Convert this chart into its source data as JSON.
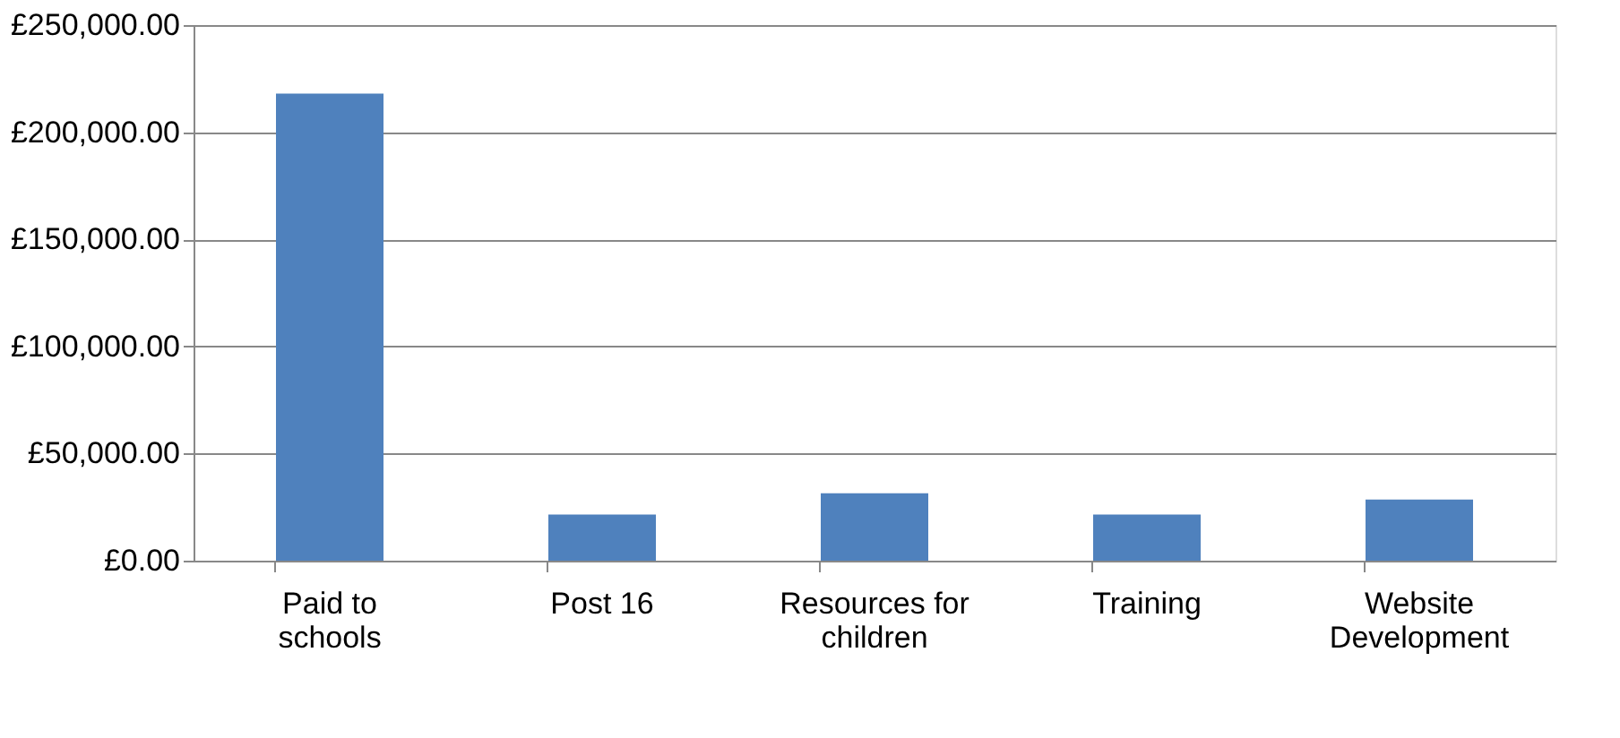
{
  "chart_data": {
    "type": "bar",
    "categories": [
      "Paid to schools",
      "Post 16",
      "Resources for children",
      "Training",
      "Website Development"
    ],
    "values": [
      218000,
      21500,
      31500,
      21500,
      28500
    ],
    "color": "#4f81bd",
    "ylim": [
      0,
      250000
    ],
    "yticks": [
      {
        "value": 0,
        "label": "£0.00"
      },
      {
        "value": 50000,
        "label": "£50,000.00"
      },
      {
        "value": 100000,
        "label": "£100,000.00"
      },
      {
        "value": 150000,
        "label": "£150,000.00"
      },
      {
        "value": 200000,
        "label": "£200,000.00"
      },
      {
        "value": 250000,
        "label": "£250,000.00"
      }
    ],
    "grid": "y"
  }
}
